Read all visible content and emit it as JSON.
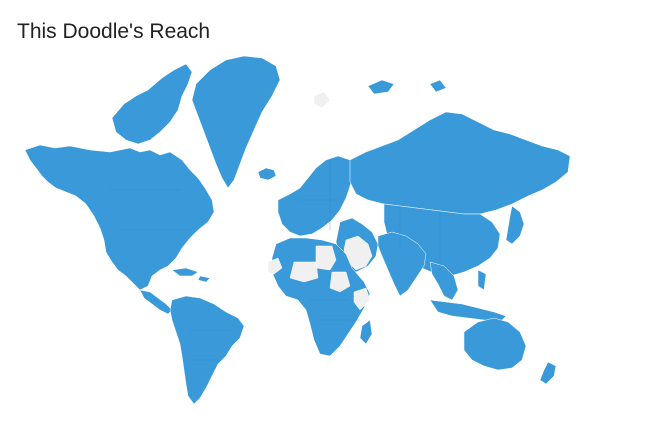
{
  "title": "This Doodle's Reach",
  "colors": {
    "reached": "#3a9ad9",
    "unreached": "#f0f0f0",
    "unreached_stroke": "#d9d9d9",
    "background": "#ffffff",
    "title": "#222222"
  },
  "regions": {
    "north_america": "reached",
    "greenland": "reached",
    "canadian_arctic_islands": "reached",
    "central_america_caribbean": "reached",
    "south_america": "reached",
    "europe": "reached",
    "iceland": "reached",
    "svalbard": "unreached",
    "russia_north_asia": "reached",
    "middle_east": "reached",
    "saudi_arabia": "unreached",
    "iran": "reached",
    "south_asia": "reached",
    "east_asia": "reached",
    "japan": "reached",
    "southeast_asia": "reached",
    "indonesia_philippines": "reached",
    "australia": "reached",
    "new_zealand": "reached",
    "africa": "reached",
    "libya": "unreached",
    "chad_niger": "unreached",
    "sudan": "unreached",
    "somalia": "unreached",
    "western_sahara": "unreached",
    "madagascar": "reached",
    "antarctica": "unreached"
  }
}
